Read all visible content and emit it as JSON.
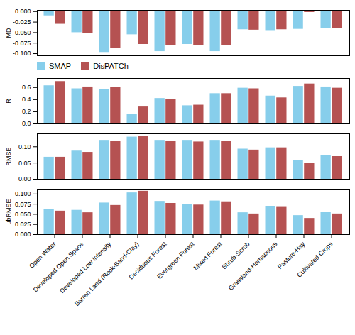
{
  "chart_data": [
    {
      "type": "bar",
      "ylabel": "MD",
      "categories": [
        "Open Water",
        "Developed Open Space",
        "Developed Low Intensity",
        "Barren Land (Rock-Sand-Clay)",
        "Deciduous Forest",
        "Evergreen Forest",
        "Mixed Forest",
        "Shrub-Scrub",
        "Grassland-Herbaceous",
        "Pasture-Hay",
        "Cultivated Crops"
      ],
      "series": [
        {
          "name": "SMAP",
          "color": "#87CEEB",
          "values": [
            -0.01,
            -0.05,
            -0.097,
            -0.055,
            -0.095,
            -0.078,
            -0.095,
            -0.043,
            -0.045,
            -0.042,
            -0.04
          ]
        },
        {
          "name": "DisPATCh",
          "color": "#B55252",
          "values": [
            -0.03,
            -0.052,
            -0.088,
            -0.078,
            -0.08,
            -0.08,
            -0.08,
            -0.044,
            -0.043,
            -0.002,
            -0.04
          ]
        }
      ],
      "ylim": [
        -0.105,
        0.003
      ],
      "yticks": [
        {
          "value": -0.1,
          "label": "-0.100"
        },
        -0.075,
        {
          "value": -0.05,
          "label": "-0.050"
        },
        -0.025,
        {
          "value": 0,
          "label": "0.000"
        }
      ],
      "legend": "lower left",
      "tick_labels": "y"
    },
    {
      "type": "bar",
      "ylabel": "R",
      "categories": [
        "Open Water",
        "Developed Open Space",
        "Developed Low Intensity",
        "Barren Land (Rock-Sand-Clay)",
        "Deciduous Forest",
        "Evergreen Forest",
        "Mixed Forest",
        "Shrub-Scrub",
        "Grassland-Herbaceous",
        "Pasture-Hay",
        "Cultivated Crops"
      ],
      "series": [
        {
          "name": "SMAP",
          "color": "#87CEEB",
          "values": [
            0.63,
            0.58,
            0.57,
            0.16,
            0.42,
            0.3,
            0.5,
            0.59,
            0.46,
            0.62,
            0.61
          ]
        },
        {
          "name": "DisPATCh",
          "color": "#B55252",
          "values": [
            0.7,
            0.61,
            0.6,
            0.28,
            0.41,
            0.31,
            0.5,
            0.58,
            0.43,
            0.66,
            0.59
          ]
        }
      ],
      "ylim": [
        0.0,
        0.75
      ],
      "yticks": [
        {
          "value": 0,
          "label": "0.0"
        },
        0.2,
        0.4,
        0.6
      ],
      "tick_labels": "y"
    },
    {
      "type": "bar",
      "ylabel": "RMSE",
      "categories": [
        "Open Water",
        "Developed Open Space",
        "Developed Low Intensity",
        "Barren Land (Rock-Sand-Clay)",
        "Deciduous Forest",
        "Evergreen Forest",
        "Mixed Forest",
        "Shrub-Scrub",
        "Grassland-Herbaceous",
        "Pasture-Hay",
        "Cultivated Crops"
      ],
      "series": [
        {
          "name": "SMAP",
          "color": "#87CEEB",
          "values": [
            0.068,
            0.087,
            0.12,
            0.13,
            0.12,
            0.12,
            0.12,
            0.093,
            0.097,
            0.057,
            0.073
          ]
        },
        {
          "name": "DisPATCh",
          "color": "#B55252",
          "values": [
            0.068,
            0.083,
            0.118,
            0.132,
            0.118,
            0.115,
            0.118,
            0.09,
            0.097,
            0.05,
            0.07
          ]
        }
      ],
      "ylim": [
        0.0,
        0.14
      ],
      "yticks": [
        {
          "value": 0,
          "label": "0.00"
        },
        0.05,
        {
          "value": 0.1,
          "label": "0.10"
        }
      ],
      "tick_labels": "y"
    },
    {
      "type": "bar",
      "ylabel": "ubRMSE",
      "categories": [
        "Open Water",
        "Developed Open Space",
        "Developed Low Intensity",
        "Barren Land (Rock-Sand-Clay)",
        "Deciduous Forest",
        "Evergreen Forest",
        "Mixed Forest",
        "Shrub-Scrub",
        "Grassland-Herbaceous",
        "Pasture-Hay",
        "Cultivated Crops"
      ],
      "series": [
        {
          "name": "SMAP",
          "color": "#87CEEB",
          "values": [
            0.063,
            0.06,
            0.078,
            0.103,
            0.082,
            0.075,
            0.083,
            0.054,
            0.07,
            0.047,
            0.055
          ]
        },
        {
          "name": "DisPATCh",
          "color": "#B55252",
          "values": [
            0.058,
            0.054,
            0.072,
            0.107,
            0.077,
            0.073,
            0.081,
            0.051,
            0.069,
            0.04,
            0.051
          ]
        }
      ],
      "ylim": [
        0.0,
        0.112
      ],
      "yticks": [
        {
          "value": 0,
          "label": "0.000"
        },
        0.025,
        {
          "value": 0.05,
          "label": "0.050"
        },
        0.075,
        {
          "value": 0.1,
          "label": "0.100"
        }
      ]
    }
  ]
}
